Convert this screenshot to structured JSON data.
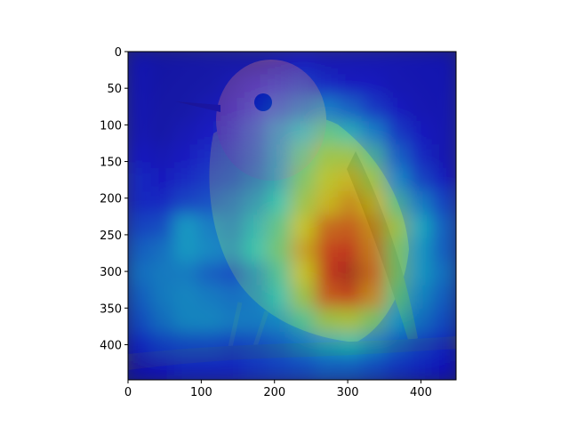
{
  "chart_data": {
    "type": "heatmap",
    "subject": "bird perched on branch with Grad-CAM style heatmap overlay (jet colormap)",
    "title": "",
    "xlabel": "",
    "ylabel": "",
    "xlim": [
      0,
      448
    ],
    "ylim": [
      448,
      0
    ],
    "y_axis_inverted": true,
    "xticks": [
      0,
      100,
      200,
      300,
      400
    ],
    "yticks": [
      0,
      50,
      100,
      150,
      200,
      250,
      300,
      350,
      400
    ],
    "grid": false,
    "colormap": "jet",
    "heatmap_grid_size": [
      14,
      14
    ],
    "heatmap_values": [
      [
        0.1,
        0.08,
        0.08,
        0.08,
        0.08,
        0.08,
        0.1,
        0.12,
        0.1,
        0.1,
        0.1,
        0.1,
        0.1,
        0.1
      ],
      [
        0.1,
        0.08,
        0.08,
        0.08,
        0.1,
        0.12,
        0.15,
        0.18,
        0.15,
        0.12,
        0.12,
        0.1,
        0.1,
        0.1
      ],
      [
        0.1,
        0.08,
        0.08,
        0.1,
        0.12,
        0.15,
        0.2,
        0.25,
        0.3,
        0.25,
        0.18,
        0.12,
        0.1,
        0.1
      ],
      [
        0.1,
        0.08,
        0.1,
        0.12,
        0.15,
        0.2,
        0.28,
        0.35,
        0.45,
        0.4,
        0.3,
        0.18,
        0.12,
        0.1
      ],
      [
        0.12,
        0.1,
        0.12,
        0.15,
        0.18,
        0.22,
        0.3,
        0.45,
        0.55,
        0.55,
        0.45,
        0.25,
        0.15,
        0.1
      ],
      [
        0.15,
        0.12,
        0.15,
        0.18,
        0.2,
        0.25,
        0.32,
        0.5,
        0.6,
        0.65,
        0.55,
        0.32,
        0.2,
        0.12
      ],
      [
        0.15,
        0.15,
        0.2,
        0.22,
        0.25,
        0.3,
        0.38,
        0.55,
        0.65,
        0.72,
        0.65,
        0.45,
        0.3,
        0.2
      ],
      [
        0.2,
        0.22,
        0.35,
        0.3,
        0.28,
        0.35,
        0.45,
        0.62,
        0.78,
        0.8,
        0.72,
        0.55,
        0.38,
        0.25
      ],
      [
        0.25,
        0.28,
        0.35,
        0.32,
        0.3,
        0.38,
        0.48,
        0.68,
        0.85,
        0.88,
        0.75,
        0.5,
        0.35,
        0.25
      ],
      [
        0.28,
        0.3,
        0.3,
        0.25,
        0.22,
        0.3,
        0.42,
        0.62,
        0.88,
        0.92,
        0.78,
        0.5,
        0.35,
        0.28
      ],
      [
        0.25,
        0.3,
        0.32,
        0.3,
        0.28,
        0.3,
        0.38,
        0.55,
        0.8,
        0.85,
        0.72,
        0.45,
        0.32,
        0.25
      ],
      [
        0.22,
        0.28,
        0.32,
        0.32,
        0.3,
        0.3,
        0.32,
        0.42,
        0.55,
        0.58,
        0.5,
        0.35,
        0.28,
        0.22
      ],
      [
        0.15,
        0.2,
        0.22,
        0.22,
        0.2,
        0.22,
        0.25,
        0.3,
        0.35,
        0.38,
        0.32,
        0.25,
        0.2,
        0.15
      ],
      [
        0.1,
        0.12,
        0.15,
        0.15,
        0.15,
        0.18,
        0.2,
        0.22,
        0.25,
        0.25,
        0.22,
        0.18,
        0.15,
        0.12
      ]
    ],
    "heatmap_opacity": 0.55
  },
  "colors": {
    "background_photo": "#2b2f6e",
    "bird_head": "#d4956a",
    "bird_body": "#8a8040",
    "branch": "#3a3a4a",
    "axis": "#000000"
  }
}
